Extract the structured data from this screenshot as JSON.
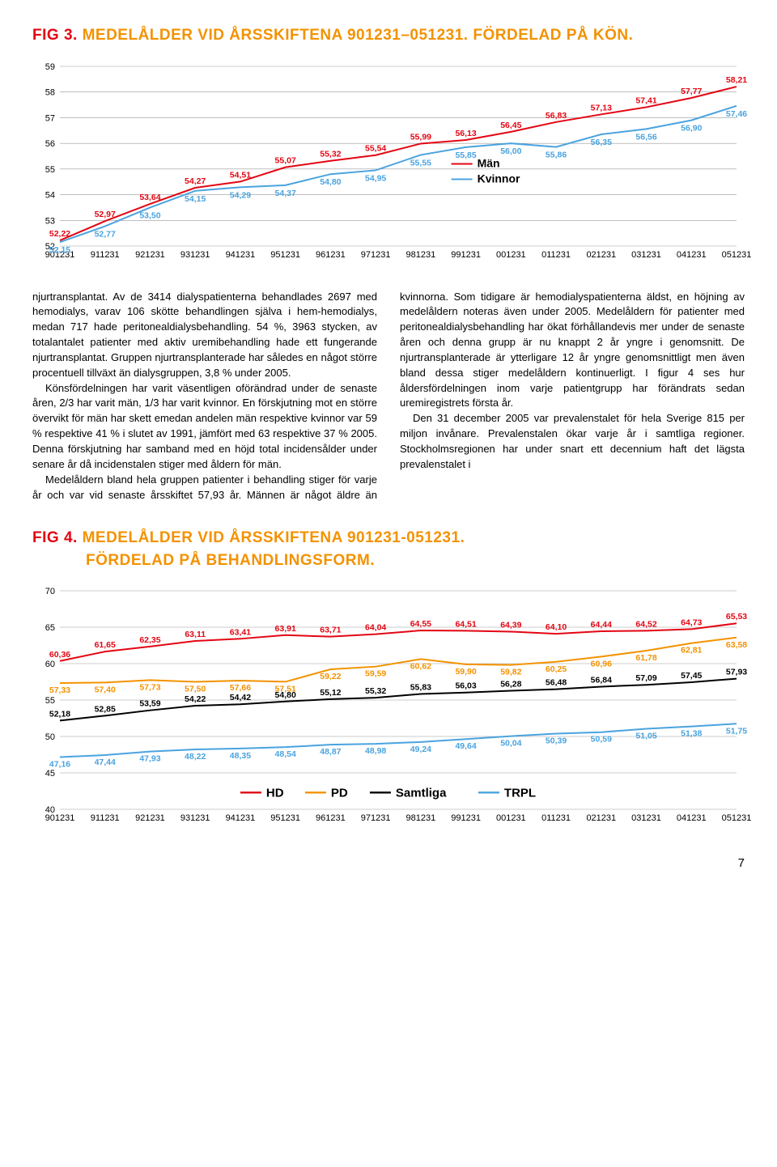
{
  "fig3": {
    "num": "FIG 3.",
    "title": "MEDELÅLDER VID ÅRSSKIFTENA 901231–051231. FÖRDELAD PÅ KÖN.",
    "type": "line",
    "xlabels": [
      "901231",
      "911231",
      "921231",
      "931231",
      "941231",
      "951231",
      "961231",
      "971231",
      "981231",
      "991231",
      "001231",
      "011231",
      "021231",
      "031231",
      "041231",
      "051231"
    ],
    "ylim": [
      52,
      59
    ],
    "ytick_step": 1,
    "grid_color": "#999999",
    "line_width": 2,
    "label_fontsize": 11,
    "series": {
      "men": {
        "label": "Män",
        "color": "#e30613",
        "values": [
          52.22,
          52.97,
          53.64,
          54.27,
          54.51,
          55.07,
          55.32,
          55.54,
          55.99,
          56.13,
          56.45,
          56.83,
          57.13,
          57.41,
          57.77,
          58.21
        ]
      },
      "women": {
        "label": "Kvinnor",
        "color": "#4aa3df",
        "values": [
          52.15,
          52.77,
          53.5,
          54.15,
          54.29,
          54.37,
          54.8,
          54.95,
          55.55,
          55.85,
          56.0,
          55.86,
          56.35,
          56.56,
          56.9,
          57.46
        ]
      }
    },
    "legend": {
      "men": "Män",
      "women": "Kvinnor"
    }
  },
  "body": {
    "p1": "njurtransplantat. Av de 3414 dialyspatienterna behandlades 2697 med hemodialys, varav 106 skötte behandlingen själva i hem-hemodialys, medan 717 hade peritonealdialysbehandling. 54 %, 3963 stycken, av totalantalet patienter med aktiv uremibehandling hade ett fungerande njurtransplantat. Gruppen njurtransplanterade har således en något större procentuell tillväxt än dialysgruppen, 3,8 % under 2005.",
    "p2": "Könsfördelningen har varit väsentligen oförändrad under de senaste åren, 2/3 har varit män, 1/3 har varit kvinnor. En förskjutning mot en större övervikt för män har skett emedan andelen män respektive kvinnor var 59 % respektive 41 % i slutet av 1991, jämfört med 63 respektive 37 % 2005. Denna förskjutning har samband med en höjd total incidensålder under senare år då incidenstalen stiger med åldern för män.",
    "p3": "Medelåldern bland hela gruppen patienter i behandling stiger för varje år och var vid senaste årsskiftet 57,93 år. Männen är något äldre än kvinnorna. Som tidigare är hemodialyspatienterna äldst, en höjning av medelåldern noteras även under 2005. Medelåldern för patienter med peritonealdialysbehandling har ökat förhållandevis mer under de senaste åren och denna grupp är nu knappt 2 år yngre i genomsnitt. De njurtransplanterade är ytterligare 12 år yngre genomsnittligt men även bland dessa stiger medelåldern kontinuerligt. I figur 4 ses hur åldersfördelningen inom varje patientgrupp har förändrats sedan uremiregistrets första år.",
    "p4": "Den 31 december 2005 var prevalenstalet för hela Sverige 815 per miljon invånare. Prevalenstalen ökar varje år i samtliga regioner. Stockholmsregionen har under snart ett decennium haft det lägsta prevalenstalet i"
  },
  "fig4": {
    "num": "FIG 4.",
    "title_l1": "MEDELÅLDER VID ÅRSSKIFTENA 901231-051231.",
    "title_l2": "FÖRDELAD PÅ BEHANDLINGSFORM.",
    "type": "line",
    "xlabels": [
      "901231",
      "911231",
      "921231",
      "931231",
      "941231",
      "951231",
      "961231",
      "971231",
      "981231",
      "991231",
      "001231",
      "011231",
      "021231",
      "031231",
      "041231",
      "051231"
    ],
    "ylim": [
      40,
      70
    ],
    "ytick_step": 5,
    "grid_color": "#999999",
    "line_width": 2,
    "label_fontsize": 11,
    "legend": {
      "hd": "HD",
      "pd": "PD",
      "samtliga": "Samtliga",
      "trpl": "TRPL"
    },
    "series": {
      "hd": {
        "label": "HD",
        "color": "#e30613",
        "values": [
          60.36,
          61.65,
          62.35,
          63.11,
          63.41,
          63.91,
          63.71,
          64.04,
          64.55,
          64.51,
          64.39,
          64.1,
          64.44,
          64.52,
          64.73,
          65.53
        ]
      },
      "pd": {
        "label": "PD",
        "color": "#f39200",
        "values": [
          57.33,
          57.4,
          57.73,
          57.5,
          57.66,
          57.51,
          59.22,
          59.59,
          60.62,
          59.9,
          59.82,
          60.25,
          60.96,
          61.78,
          62.81,
          63.58
        ]
      },
      "samtliga": {
        "label": "Samtliga",
        "color": "#000000",
        "values": [
          52.18,
          52.85,
          53.59,
          54.22,
          54.42,
          54.8,
          55.12,
          55.32,
          55.83,
          56.03,
          56.28,
          56.48,
          56.84,
          57.09,
          57.45,
          57.93
        ]
      },
      "trpl": {
        "label": "TRPL",
        "color": "#4aa3df",
        "values": [
          47.16,
          47.44,
          47.93,
          48.22,
          48.35,
          48.54,
          48.87,
          48.98,
          49.24,
          49.64,
          50.04,
          50.39,
          50.59,
          51.05,
          51.38,
          51.75
        ]
      }
    }
  },
  "pagenum": "7"
}
